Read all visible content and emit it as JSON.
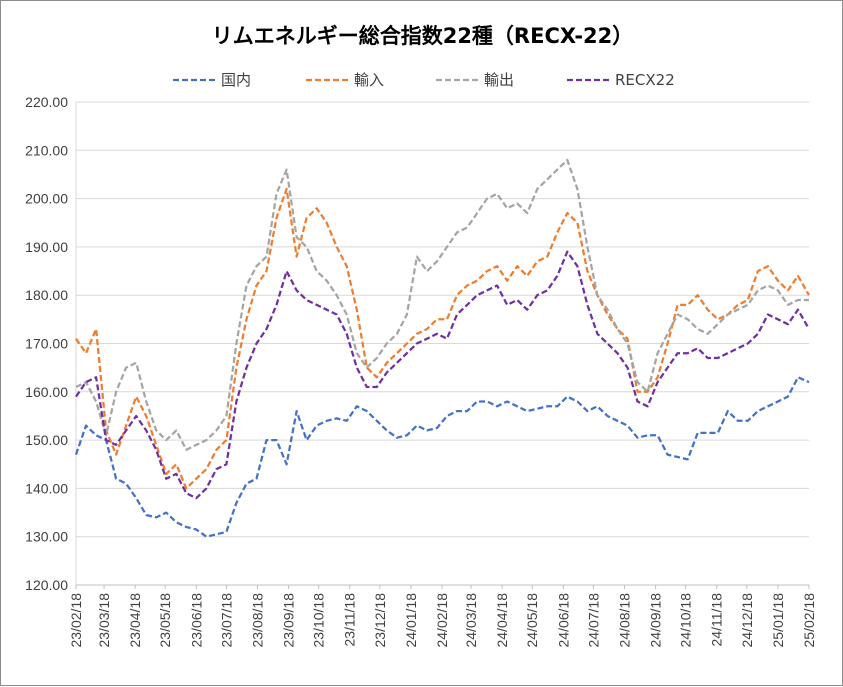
{
  "chart_data": {
    "type": "line",
    "title": "リムエネルギー総合指数22種（RECX-22）",
    "xlabel": "",
    "ylabel": "",
    "ylim": [
      120,
      220
    ],
    "y_ticks": [
      "220.00",
      "210.00",
      "200.00",
      "190.00",
      "180.00",
      "170.00",
      "160.00",
      "150.00",
      "140.00",
      "130.00",
      "120.00"
    ],
    "x_ticks": [
      "23/02/18",
      "23/03/18",
      "23/04/18",
      "23/05/18",
      "23/06/18",
      "23/07/18",
      "23/08/18",
      "23/09/18",
      "23/10/18",
      "23/11/18",
      "23/12/18",
      "24/01/18",
      "24/02/18",
      "24/03/18",
      "24/04/18",
      "24/05/18",
      "24/06/18",
      "24/07/18",
      "24/08/18",
      "24/09/18",
      "24/10/18",
      "24/11/18",
      "24/12/18",
      "25/01/18",
      "25/02/18"
    ],
    "x_start": "23/02/18",
    "x_end": "25/02/18",
    "grid": true,
    "legend_position": "top",
    "series": [
      {
        "name": "国内",
        "color": "#4472C4",
        "x": [
          "23/02/18",
          "23/02/28",
          "23/03/10",
          "23/03/20",
          "23/03/30",
          "23/04/09",
          "23/04/19",
          "23/04/29",
          "23/05/09",
          "23/05/19",
          "23/05/29",
          "23/06/08",
          "23/06/18",
          "23/06/28",
          "23/07/08",
          "23/07/18",
          "23/07/28",
          "23/08/07",
          "23/08/17",
          "23/08/27",
          "23/09/06",
          "23/09/16",
          "23/09/26",
          "23/10/06",
          "23/10/16",
          "23/10/26",
          "23/11/05",
          "23/11/15",
          "23/11/25",
          "23/12/05",
          "23/12/15",
          "23/12/25",
          "24/01/04",
          "24/01/14",
          "24/01/24",
          "24/02/03",
          "24/02/13",
          "24/02/23",
          "24/03/04",
          "24/03/14",
          "24/03/24",
          "24/04/03",
          "24/04/13",
          "24/04/23",
          "24/05/03",
          "24/05/13",
          "24/05/23",
          "24/06/02",
          "24/06/12",
          "24/06/22",
          "24/07/02",
          "24/07/12",
          "24/07/22",
          "24/08/01",
          "24/08/11",
          "24/08/21",
          "24/08/31",
          "24/09/10",
          "24/09/20",
          "24/09/30",
          "24/10/10",
          "24/10/20",
          "24/10/30",
          "24/11/09",
          "24/11/19",
          "24/11/29",
          "24/12/09",
          "24/12/19",
          "24/12/29",
          "25/01/08",
          "25/01/18",
          "25/01/28",
          "25/02/07",
          "25/02/18"
        ],
        "values": [
          147,
          153,
          151,
          150,
          142,
          141,
          138,
          134.5,
          134,
          135,
          133,
          132,
          131.5,
          130,
          130.5,
          131,
          137,
          141,
          142,
          150,
          150,
          145,
          156,
          150,
          153,
          154,
          154.5,
          154,
          157,
          156,
          154,
          152,
          150.5,
          151,
          153,
          152,
          152.5,
          155,
          156,
          156,
          158,
          158,
          157,
          158,
          157,
          156,
          156.5,
          157,
          157,
          159,
          158,
          156,
          157,
          155,
          154,
          153,
          150.5,
          151,
          151,
          147,
          146.5,
          146,
          151.5,
          151.5,
          151.5,
          156,
          154,
          154,
          156,
          157,
          158,
          159,
          163,
          162
        ]
      },
      {
        "name": "輸入",
        "color": "#ED7D31",
        "x": [
          "23/02/18",
          "23/02/28",
          "23/03/10",
          "23/03/20",
          "23/03/30",
          "23/04/09",
          "23/04/19",
          "23/04/29",
          "23/05/09",
          "23/05/19",
          "23/05/29",
          "23/06/08",
          "23/06/18",
          "23/06/28",
          "23/07/08",
          "23/07/18",
          "23/07/28",
          "23/08/07",
          "23/08/17",
          "23/08/27",
          "23/09/06",
          "23/09/16",
          "23/09/26",
          "23/10/06",
          "23/10/16",
          "23/10/26",
          "23/11/05",
          "23/11/15",
          "23/11/25",
          "23/12/05",
          "23/12/15",
          "23/12/25",
          "24/01/04",
          "24/01/14",
          "24/01/24",
          "24/02/03",
          "24/02/13",
          "24/02/23",
          "24/03/04",
          "24/03/14",
          "24/03/24",
          "24/04/03",
          "24/04/13",
          "24/04/23",
          "24/05/03",
          "24/05/13",
          "24/05/23",
          "24/06/02",
          "24/06/12",
          "24/06/22",
          "24/07/02",
          "24/07/12",
          "24/07/22",
          "24/08/01",
          "24/08/11",
          "24/08/21",
          "24/08/31",
          "24/09/10",
          "24/09/20",
          "24/09/30",
          "24/10/10",
          "24/10/20",
          "24/10/30",
          "24/11/09",
          "24/11/19",
          "24/11/29",
          "24/12/09",
          "24/12/19",
          "24/12/29",
          "25/01/08",
          "25/01/18",
          "25/01/28",
          "25/02/07",
          "25/02/18"
        ],
        "values": [
          171,
          168,
          173,
          152,
          147,
          153,
          159,
          155,
          149,
          143,
          145,
          140,
          142,
          144,
          148,
          150,
          165,
          175,
          182,
          185,
          196,
          202,
          188,
          196,
          198,
          195,
          190,
          186,
          177,
          165,
          163,
          166,
          168,
          170,
          172,
          173,
          175,
          175,
          180,
          182,
          183,
          185,
          186,
          183,
          186,
          184,
          187,
          188,
          193,
          197,
          195,
          185,
          180,
          176,
          173,
          171,
          160,
          160,
          163,
          170,
          178,
          178,
          180,
          177,
          175,
          176,
          178,
          179,
          185,
          186,
          183,
          181,
          184,
          180
        ]
      },
      {
        "name": "輸出",
        "color": "#A5A5A5",
        "x": [
          "23/02/18",
          "23/02/28",
          "23/03/10",
          "23/03/20",
          "23/03/30",
          "23/04/09",
          "23/04/19",
          "23/04/29",
          "23/05/09",
          "23/05/19",
          "23/05/29",
          "23/06/08",
          "23/06/18",
          "23/06/28",
          "23/07/08",
          "23/07/18",
          "23/07/28",
          "23/08/07",
          "23/08/17",
          "23/08/27",
          "23/09/06",
          "23/09/16",
          "23/09/26",
          "23/10/06",
          "23/10/16",
          "23/10/26",
          "23/11/05",
          "23/11/15",
          "23/11/25",
          "23/12/05",
          "23/12/15",
          "23/12/25",
          "24/01/04",
          "24/01/14",
          "24/01/24",
          "24/02/03",
          "24/02/13",
          "24/02/23",
          "24/03/04",
          "24/03/14",
          "24/03/24",
          "24/04/03",
          "24/04/13",
          "24/04/23",
          "24/05/03",
          "24/05/13",
          "24/05/23",
          "24/06/02",
          "24/06/12",
          "24/06/22",
          "24/07/02",
          "24/07/12",
          "24/07/22",
          "24/08/01",
          "24/08/11",
          "24/08/21",
          "24/08/31",
          "24/09/10",
          "24/09/20",
          "24/09/30",
          "24/10/10",
          "24/10/20",
          "24/10/30",
          "24/11/09",
          "24/11/19",
          "24/11/29",
          "24/12/09",
          "24/12/19",
          "24/12/29",
          "25/01/08",
          "25/01/18",
          "25/01/28",
          "25/02/07",
          "25/02/18"
        ],
        "values": [
          161,
          162,
          158,
          151,
          160,
          165,
          166,
          158,
          152,
          150,
          152,
          148,
          149,
          150,
          152,
          155,
          170,
          182,
          186,
          188,
          201,
          206,
          192,
          190,
          185,
          183,
          180,
          176,
          168,
          165,
          167,
          170,
          172,
          176,
          188,
          185,
          187,
          190,
          193,
          194,
          197,
          200,
          201,
          198,
          199,
          197,
          202,
          204,
          206,
          208,
          202,
          190,
          180,
          177,
          173,
          170,
          162,
          160,
          168,
          172,
          176,
          175,
          173,
          172,
          174,
          176,
          177,
          178,
          181,
          182,
          181,
          178,
          179,
          179
        ]
      },
      {
        "name": "RECX22",
        "color": "#7030A0",
        "x": [
          "23/02/18",
          "23/02/28",
          "23/03/10",
          "23/03/20",
          "23/03/30",
          "23/04/09",
          "23/04/19",
          "23/04/29",
          "23/05/09",
          "23/05/19",
          "23/05/29",
          "23/06/08",
          "23/06/18",
          "23/06/28",
          "23/07/08",
          "23/07/18",
          "23/07/28",
          "23/08/07",
          "23/08/17",
          "23/08/27",
          "23/09/06",
          "23/09/16",
          "23/09/26",
          "23/10/06",
          "23/10/16",
          "23/10/26",
          "23/11/05",
          "23/11/15",
          "23/11/25",
          "23/12/05",
          "23/12/15",
          "23/12/25",
          "24/01/04",
          "24/01/14",
          "24/01/24",
          "24/02/03",
          "24/02/13",
          "24/02/23",
          "24/03/04",
          "24/03/14",
          "24/03/24",
          "24/04/03",
          "24/04/13",
          "24/04/23",
          "24/05/03",
          "24/05/13",
          "24/05/23",
          "24/06/02",
          "24/06/12",
          "24/06/22",
          "24/07/02",
          "24/07/12",
          "24/07/22",
          "24/08/01",
          "24/08/11",
          "24/08/21",
          "24/08/31",
          "24/09/10",
          "24/09/20",
          "24/09/30",
          "24/10/10",
          "24/10/20",
          "24/10/30",
          "24/11/09",
          "24/11/19",
          "24/11/29",
          "24/12/09",
          "24/12/19",
          "24/12/29",
          "25/01/08",
          "25/01/18",
          "25/01/28",
          "25/02/07",
          "25/02/18"
        ],
        "values": [
          159,
          162,
          163,
          150,
          149,
          152,
          155,
          152,
          148,
          142,
          143,
          139,
          138,
          140,
          144,
          145,
          158,
          165,
          170,
          173,
          178,
          185,
          181,
          179,
          178,
          177,
          176,
          172,
          165,
          161,
          161,
          164,
          166,
          168,
          170,
          171,
          172,
          171,
          176,
          178,
          180,
          181,
          182,
          178,
          179,
          177,
          180,
          181,
          184,
          189,
          186,
          178,
          172,
          170,
          168,
          165,
          158,
          157,
          162,
          165,
          168,
          168,
          169,
          167,
          167,
          168,
          169,
          170,
          172,
          176,
          175,
          174,
          177,
          173
        ]
      }
    ]
  }
}
